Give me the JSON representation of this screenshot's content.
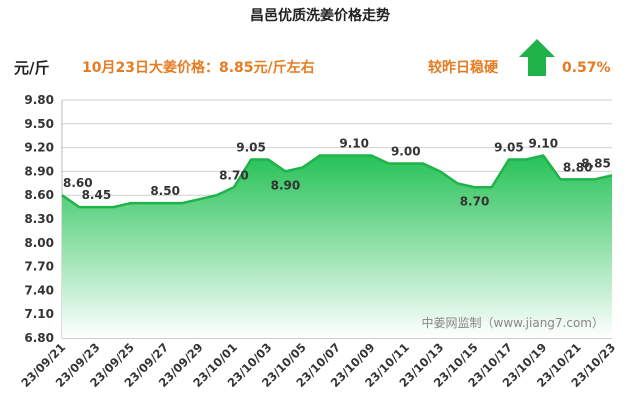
{
  "colors": {
    "line": "#1fb34a",
    "area_top": "#27c257",
    "area_bottom": "#ffffff",
    "headline": "#e57c22",
    "arrow": "#1fb34a",
    "grid": "#d0d0d0"
  },
  "header": {
    "unit": "元/斤",
    "price_label": "10月23日大姜价格：8.85元/斤左右",
    "trend_label": "较昨日稳硬",
    "change_percent": "0.57%",
    "trend_icon": "up-arrow-icon"
  },
  "watermark": "中姜网监制（www.jiang7.com）",
  "chart_data": {
    "type": "area",
    "title": "昌邑优质洗姜价格走势",
    "ylabel": "元/斤",
    "ylim": [
      6.8,
      9.8
    ],
    "yticks": [
      "6.80",
      "7.10",
      "7.40",
      "7.70",
      "8.00",
      "8.30",
      "8.60",
      "8.90",
      "9.20",
      "9.50",
      "9.80"
    ],
    "grid": "horizontal",
    "legend": "none",
    "x_tick_labels": [
      "23/09/21",
      "23/09/23",
      "23/09/25",
      "23/09/27",
      "23/09/29",
      "23/10/01",
      "23/10/03",
      "23/10/05",
      "23/10/07",
      "23/10/09",
      "23/10/11",
      "23/10/13",
      "23/10/15",
      "23/10/17",
      "23/10/19",
      "23/10/21",
      "23/10/23"
    ],
    "x": [
      "23/09/21",
      "23/09/22",
      "23/09/23",
      "23/09/24",
      "23/09/25",
      "23/09/26",
      "23/09/27",
      "23/09/28",
      "23/09/29",
      "23/09/30",
      "23/10/01",
      "23/10/02",
      "23/10/03",
      "23/10/04",
      "23/10/05",
      "23/10/06",
      "23/10/07",
      "23/10/08",
      "23/10/09",
      "23/10/10",
      "23/10/11",
      "23/10/12",
      "23/10/13",
      "23/10/14",
      "23/10/15",
      "23/10/16",
      "23/10/17",
      "23/10/18",
      "23/10/19",
      "23/10/20",
      "23/10/21",
      "23/10/22",
      "23/10/23"
    ],
    "values": [
      8.6,
      8.45,
      8.45,
      8.45,
      8.5,
      8.5,
      8.5,
      8.5,
      8.55,
      8.6,
      8.7,
      9.05,
      9.05,
      8.9,
      8.95,
      9.1,
      9.1,
      9.1,
      9.1,
      9.0,
      9.0,
      9.0,
      8.9,
      8.75,
      8.7,
      8.7,
      9.05,
      9.05,
      9.1,
      8.8,
      8.8,
      8.8,
      8.85
    ],
    "data_labels": [
      {
        "x": "23/09/21",
        "text": "8.60"
      },
      {
        "x": "23/09/23",
        "text": "8.45"
      },
      {
        "x": "23/09/27",
        "text": "8.50"
      },
      {
        "x": "23/10/01",
        "text": "8.70"
      },
      {
        "x": "23/10/02",
        "text": "9.05"
      },
      {
        "x": "23/10/04",
        "text": "8.90"
      },
      {
        "x": "23/10/08",
        "text": "9.10"
      },
      {
        "x": "23/10/11",
        "text": "9.00"
      },
      {
        "x": "23/10/15",
        "text": "8.70"
      },
      {
        "x": "23/10/17",
        "text": "9.05"
      },
      {
        "x": "23/10/19",
        "text": "9.10"
      },
      {
        "x": "23/10/21",
        "text": "8.80"
      },
      {
        "x": "23/10/23",
        "text": "8.85"
      }
    ]
  }
}
